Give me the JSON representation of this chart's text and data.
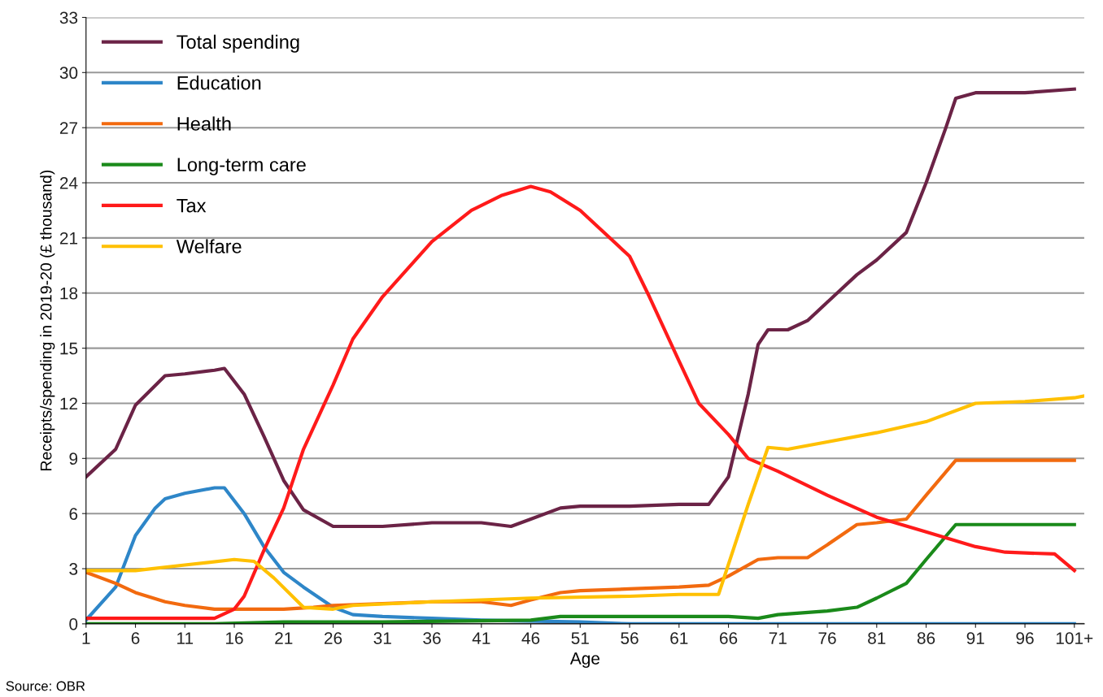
{
  "chart_data": {
    "type": "line",
    "xlabel": "Age",
    "ylabel": "Receipts/spending in 2019-20 (£ thousand)",
    "annotations": [
      "Source: OBR"
    ],
    "xlim": [
      1,
      102
    ],
    "xticks": [
      1,
      6,
      11,
      16,
      21,
      26,
      31,
      36,
      41,
      46,
      51,
      56,
      61,
      66,
      71,
      76,
      81,
      86,
      91,
      96,
      {
        "value": 101,
        "label": "101+"
      }
    ],
    "ylim": [
      0,
      33
    ],
    "yticks": [
      0,
      3,
      6,
      9,
      12,
      15,
      18,
      21,
      24,
      27,
      30,
      33
    ],
    "grid": "y",
    "legend": "top left",
    "marker": "none",
    "line_style": "solid",
    "series": [
      {
        "name": "Total spending",
        "color": "#6b2346",
        "x": [
          1,
          4,
          6,
          9,
          11,
          14,
          15,
          17,
          19,
          21,
          23,
          26,
          31,
          36,
          41,
          44,
          46,
          49,
          51,
          56,
          61,
          64,
          66,
          68,
          69,
          70,
          72,
          74,
          76,
          79,
          81,
          84,
          86,
          88,
          89,
          91,
          96,
          101
        ],
        "values": [
          8.0,
          9.5,
          11.9,
          13.5,
          13.6,
          13.8,
          13.9,
          12.5,
          10.2,
          7.8,
          6.2,
          5.3,
          5.3,
          5.5,
          5.5,
          5.3,
          5.7,
          6.3,
          6.4,
          6.4,
          6.5,
          6.5,
          8.0,
          12.5,
          15.2,
          16.0,
          16.0,
          16.5,
          17.5,
          19.0,
          19.8,
          21.3,
          24.0,
          27.0,
          28.6,
          28.9,
          28.9,
          29.1
        ]
      },
      {
        "name": "Education",
        "color": "#2e86c8",
        "x": [
          1,
          4,
          6,
          8,
          9,
          11,
          14,
          15,
          17,
          19,
          21,
          23,
          26,
          28,
          31,
          36,
          41,
          51,
          56,
          101
        ],
        "values": [
          0.2,
          2.0,
          4.8,
          6.3,
          6.8,
          7.1,
          7.4,
          7.4,
          6.0,
          4.2,
          2.8,
          2.0,
          0.9,
          0.5,
          0.4,
          0.3,
          0.2,
          0.1,
          0,
          0
        ]
      },
      {
        "name": "Health",
        "color": "#f26a0f",
        "x": [
          1,
          4,
          6,
          9,
          11,
          14,
          21,
          24,
          26,
          31,
          36,
          41,
          44,
          46,
          49,
          51,
          56,
          61,
          64,
          66,
          69,
          71,
          74,
          76,
          79,
          81,
          84,
          86,
          89,
          101
        ],
        "values": [
          2.8,
          2.2,
          1.7,
          1.2,
          1.0,
          0.8,
          0.8,
          0.9,
          1.0,
          1.1,
          1.2,
          1.2,
          1.0,
          1.3,
          1.7,
          1.8,
          1.9,
          2.0,
          2.1,
          2.6,
          3.5,
          3.6,
          3.6,
          4.3,
          5.4,
          5.5,
          5.7,
          7.0,
          8.9,
          8.9
        ]
      },
      {
        "name": "Long-term care",
        "color": "#1a8a1a",
        "x": [
          1,
          14,
          21,
          31,
          46,
          49,
          66,
          69,
          71,
          76,
          79,
          81,
          84,
          86,
          89,
          101
        ],
        "values": [
          0,
          0,
          0.1,
          0.1,
          0.2,
          0.4,
          0.4,
          0.3,
          0.5,
          0.7,
          0.9,
          1.4,
          2.2,
          3.5,
          5.4,
          5.4
        ]
      },
      {
        "name": "Tax",
        "color": "#ff1a1a",
        "x": [
          1,
          14,
          16,
          17,
          19,
          21,
          23,
          26,
          28,
          31,
          36,
          40,
          43,
          46,
          48,
          51,
          56,
          58,
          61,
          63,
          66,
          68,
          71,
          76,
          81,
          86,
          91,
          94,
          99,
          101
        ],
        "values": [
          0.3,
          0.3,
          0.8,
          1.5,
          4.0,
          6.3,
          9.5,
          13.0,
          15.5,
          17.8,
          20.8,
          22.5,
          23.3,
          23.8,
          23.5,
          22.5,
          20.0,
          17.8,
          14.3,
          12.0,
          10.3,
          9.0,
          8.3,
          7.0,
          5.8,
          5.0,
          4.2,
          3.9,
          3.8,
          2.9
        ]
      },
      {
        "name": "Welfare",
        "color": "#ffc000",
        "x": [
          1,
          6,
          11,
          16,
          18,
          20,
          23,
          26,
          28,
          36,
          46,
          56,
          61,
          65,
          68,
          70,
          72,
          76,
          81,
          86,
          91,
          96,
          101,
          102
        ],
        "values": [
          2.9,
          2.9,
          3.2,
          3.5,
          3.4,
          2.5,
          0.9,
          0.8,
          1.0,
          1.2,
          1.4,
          1.5,
          1.6,
          1.6,
          6.5,
          9.6,
          9.5,
          9.9,
          10.4,
          11.0,
          12.0,
          12.1,
          12.3,
          12.4
        ]
      }
    ]
  }
}
